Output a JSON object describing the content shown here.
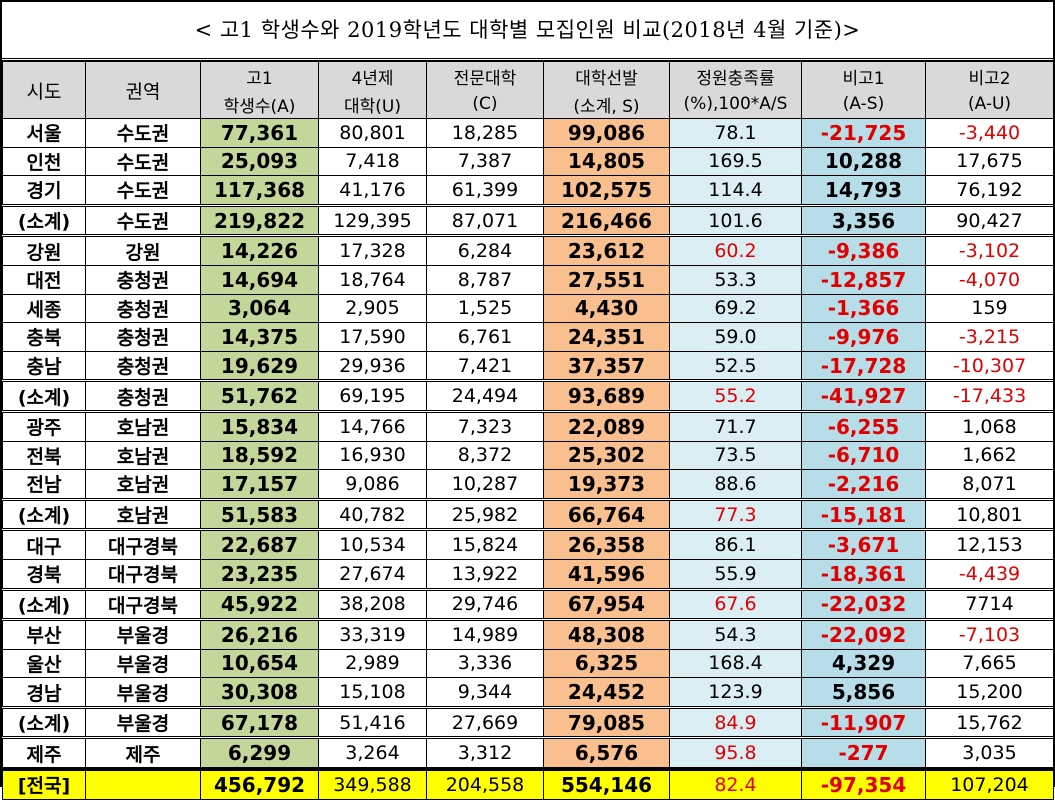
{
  "title": "< 고1 학생수와 2019학년도 대학별 모집인원 비교(2018년 4월 기준)>",
  "headers": [
    [
      "시도",
      ""
    ],
    [
      "권역",
      ""
    ],
    [
      "고1",
      "학생수(A)"
    ],
    [
      "4년제",
      "대학(U)"
    ],
    [
      "전문대학",
      "(C)"
    ],
    [
      "대학선발",
      "(소계, S)"
    ],
    [
      "정원충족률",
      "(%),100*A/S"
    ],
    [
      "비고1",
      "(A-S)"
    ],
    [
      "비고2",
      "(A-U)"
    ]
  ],
  "colors": {
    "A": "#c4d79b",
    "S": "#f9bf8f",
    "rate": "#daeef3",
    "diff": "#b7dde8",
    "total": "#ffff00",
    "header": "#d9d9d9",
    "negative": "#e00000"
  },
  "rows": [
    {
      "sido": "서울",
      "region": "수도권",
      "A": "77,361",
      "U": "80,801",
      "C": "18,285",
      "S": "99,086",
      "rate": "78.1",
      "rate_red": false,
      "d1": "-21,725",
      "d2": "-3,440"
    },
    {
      "sido": "인천",
      "region": "수도권",
      "A": "25,093",
      "U": "7,418",
      "C": "7,387",
      "S": "14,805",
      "rate": "169.5",
      "rate_red": false,
      "d1": "10,288",
      "d2": "17,675"
    },
    {
      "sido": "경기",
      "region": "수도권",
      "A": "117,368",
      "U": "41,176",
      "C": "61,399",
      "S": "102,575",
      "rate": "114.4",
      "rate_red": false,
      "d1": "14,793",
      "d2": "76,192"
    },
    {
      "sido": "(소계)",
      "region": "수도권",
      "A": "219,822",
      "U": "129,395",
      "C": "87,071",
      "S": "216,466",
      "rate": "101.6",
      "rate_red": false,
      "d1": "3,356",
      "d2": "90,427",
      "sub": true
    },
    {
      "sido": "강원",
      "region": "강원",
      "A": "14,226",
      "U": "17,328",
      "C": "6,284",
      "S": "23,612",
      "rate": "60.2",
      "rate_red": true,
      "d1": "-9,386",
      "d2": "-3,102",
      "sub": true
    },
    {
      "sido": "대전",
      "region": "충청권",
      "A": "14,694",
      "U": "18,764",
      "C": "8,787",
      "S": "27,551",
      "rate": "53.3",
      "rate_red": false,
      "d1": "-12,857",
      "d2": "-4,070"
    },
    {
      "sido": "세종",
      "region": "충청권",
      "A": "3,064",
      "U": "2,905",
      "C": "1,525",
      "S": "4,430",
      "rate": "69.2",
      "rate_red": false,
      "d1": "-1,366",
      "d2": "159"
    },
    {
      "sido": "충북",
      "region": "충청권",
      "A": "14,375",
      "U": "17,590",
      "C": "6,761",
      "S": "24,351",
      "rate": "59.0",
      "rate_red": false,
      "d1": "-9,976",
      "d2": "-3,215"
    },
    {
      "sido": "충남",
      "region": "충청권",
      "A": "19,629",
      "U": "29,936",
      "C": "7,421",
      "S": "37,357",
      "rate": "52.5",
      "rate_red": false,
      "d1": "-17,728",
      "d2": "-10,307"
    },
    {
      "sido": "(소계)",
      "region": "충청권",
      "A": "51,762",
      "U": "69,195",
      "C": "24,494",
      "S": "93,689",
      "rate": "55.2",
      "rate_red": true,
      "d1": "-41,927",
      "d2": "-17,433",
      "sub": true
    },
    {
      "sido": "광주",
      "region": "호남권",
      "A": "15,834",
      "U": "14,766",
      "C": "7,323",
      "S": "22,089",
      "rate": "71.7",
      "rate_red": false,
      "d1": "-6,255",
      "d2": "1,068"
    },
    {
      "sido": "전북",
      "region": "호남권",
      "A": "18,592",
      "U": "16,930",
      "C": "8,372",
      "S": "25,302",
      "rate": "73.5",
      "rate_red": false,
      "d1": "-6,710",
      "d2": "1,662"
    },
    {
      "sido": "전남",
      "region": "호남권",
      "A": "17,157",
      "U": "9,086",
      "C": "10,287",
      "S": "19,373",
      "rate": "88.6",
      "rate_red": false,
      "d1": "-2,216",
      "d2": "8,071"
    },
    {
      "sido": "(소계)",
      "region": "호남권",
      "A": "51,583",
      "U": "40,782",
      "C": "25,982",
      "S": "66,764",
      "rate": "77.3",
      "rate_red": true,
      "d1": "-15,181",
      "d2": "10,801",
      "sub": true
    },
    {
      "sido": "대구",
      "region": "대구경북",
      "A": "22,687",
      "U": "10,534",
      "C": "15,824",
      "S": "26,358",
      "rate": "86.1",
      "rate_red": false,
      "d1": "-3,671",
      "d2": "12,153"
    },
    {
      "sido": "경북",
      "region": "대구경북",
      "A": "23,235",
      "U": "27,674",
      "C": "13,922",
      "S": "41,596",
      "rate": "55.9",
      "rate_red": false,
      "d1": "-18,361",
      "d2": "-4,439"
    },
    {
      "sido": "(소계)",
      "region": "대구경북",
      "A": "45,922",
      "U": "38,208",
      "C": "29,746",
      "S": "67,954",
      "rate": "67.6",
      "rate_red": true,
      "d1": "-22,032",
      "d2": "7714",
      "sub": true
    },
    {
      "sido": "부산",
      "region": "부울경",
      "A": "26,216",
      "U": "33,319",
      "C": "14,989",
      "S": "48,308",
      "rate": "54.3",
      "rate_red": false,
      "d1": "-22,092",
      "d2": "-7,103"
    },
    {
      "sido": "울산",
      "region": "부울경",
      "A": "10,654",
      "U": "2,989",
      "C": "3,336",
      "S": "6,325",
      "rate": "168.4",
      "rate_red": false,
      "d1": "4,329",
      "d2": "7,665"
    },
    {
      "sido": "경남",
      "region": "부울경",
      "A": "30,308",
      "U": "15,108",
      "C": "9,344",
      "S": "24,452",
      "rate": "123.9",
      "rate_red": false,
      "d1": "5,856",
      "d2": "15,200"
    },
    {
      "sido": "(소계)",
      "region": "부울경",
      "A": "67,178",
      "U": "51,416",
      "C": "27,669",
      "S": "79,085",
      "rate": "84.9",
      "rate_red": true,
      "d1": "-11,907",
      "d2": "15,762",
      "sub": true
    },
    {
      "sido": "제주",
      "region": "제주",
      "A": "6,299",
      "U": "3,264",
      "C": "3,312",
      "S": "6,576",
      "rate": "95.8",
      "rate_red": true,
      "d1": "-277",
      "d2": "3,035"
    }
  ],
  "total": {
    "sido": "[전국]",
    "region": "",
    "A": "456,792",
    "U": "349,588",
    "C": "204,558",
    "S": "554,146",
    "rate": "82.4",
    "rate_red": true,
    "d1": "-97,354",
    "d2": "107,204"
  }
}
